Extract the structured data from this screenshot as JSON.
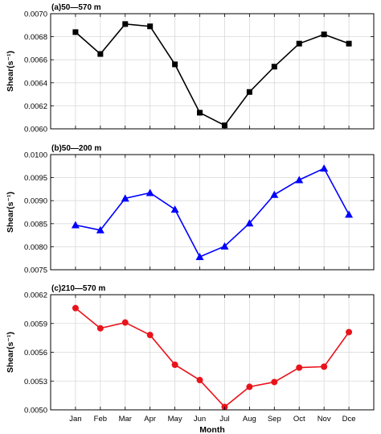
{
  "chart_data": [
    {
      "type": "line",
      "title": "(a)50—570 m",
      "ylabel": "Shear(s⁻¹)",
      "xlabel": "",
      "categories": [
        "Jan",
        "Feb",
        "Mar",
        "Apr",
        "May",
        "Jun",
        "Jul",
        "Aug",
        "Sep",
        "Oct",
        "Nov",
        "Dce"
      ],
      "series": [
        {
          "values": [
            0.00684,
            0.00665,
            0.00691,
            0.00689,
            0.00656,
            0.00614,
            0.00603,
            0.00632,
            0.00654,
            0.00674,
            0.00682,
            0.00674
          ],
          "color": "#000000",
          "marker": "square"
        }
      ],
      "ylim": [
        0.006,
        0.007
      ],
      "yticks": [
        "0.0060",
        "0.0062",
        "0.0064",
        "0.0066",
        "0.0068",
        "0.0070"
      ],
      "grid": true
    },
    {
      "type": "line",
      "title": "(b)50—200 m",
      "ylabel": "Shear(s⁻¹)",
      "xlabel": "",
      "categories": [
        "Jan",
        "Feb",
        "Mar",
        "Apr",
        "May",
        "Jun",
        "Jul",
        "Aug",
        "Sep",
        "Oct",
        "Nov",
        "Dce"
      ],
      "series": [
        {
          "values": [
            0.00847,
            0.00836,
            0.00905,
            0.00917,
            0.00881,
            0.00778,
            0.00801,
            0.00851,
            0.00913,
            0.00945,
            0.0097,
            0.0087
          ],
          "color": "#0000ff",
          "marker": "triangle"
        }
      ],
      "ylim": [
        0.0075,
        0.01
      ],
      "yticks": [
        "0.0075",
        "0.0080",
        "0.0085",
        "0.0090",
        "0.0095",
        "0.0100"
      ],
      "grid": true
    },
    {
      "type": "line",
      "title": "(c)210—570 m",
      "ylabel": "Shear(s⁻¹)",
      "xlabel": "Month",
      "categories": [
        "Jan",
        "Feb",
        "Mar",
        "Apr",
        "May",
        "Jun",
        "Jul",
        "Aug",
        "Sep",
        "Oct",
        "Nov",
        "Dce"
      ],
      "series": [
        {
          "values": [
            0.00606,
            0.00585,
            0.00591,
            0.00578,
            0.00547,
            0.00531,
            0.00503,
            0.00524,
            0.00529,
            0.00544,
            0.00545,
            0.00581
          ],
          "color": "#e8141b",
          "marker": "circle"
        }
      ],
      "ylim": [
        0.005,
        0.0062
      ],
      "yticks": [
        "0.0050",
        "0.0053",
        "0.0056",
        "0.0059",
        "0.0062"
      ],
      "grid": true
    }
  ]
}
